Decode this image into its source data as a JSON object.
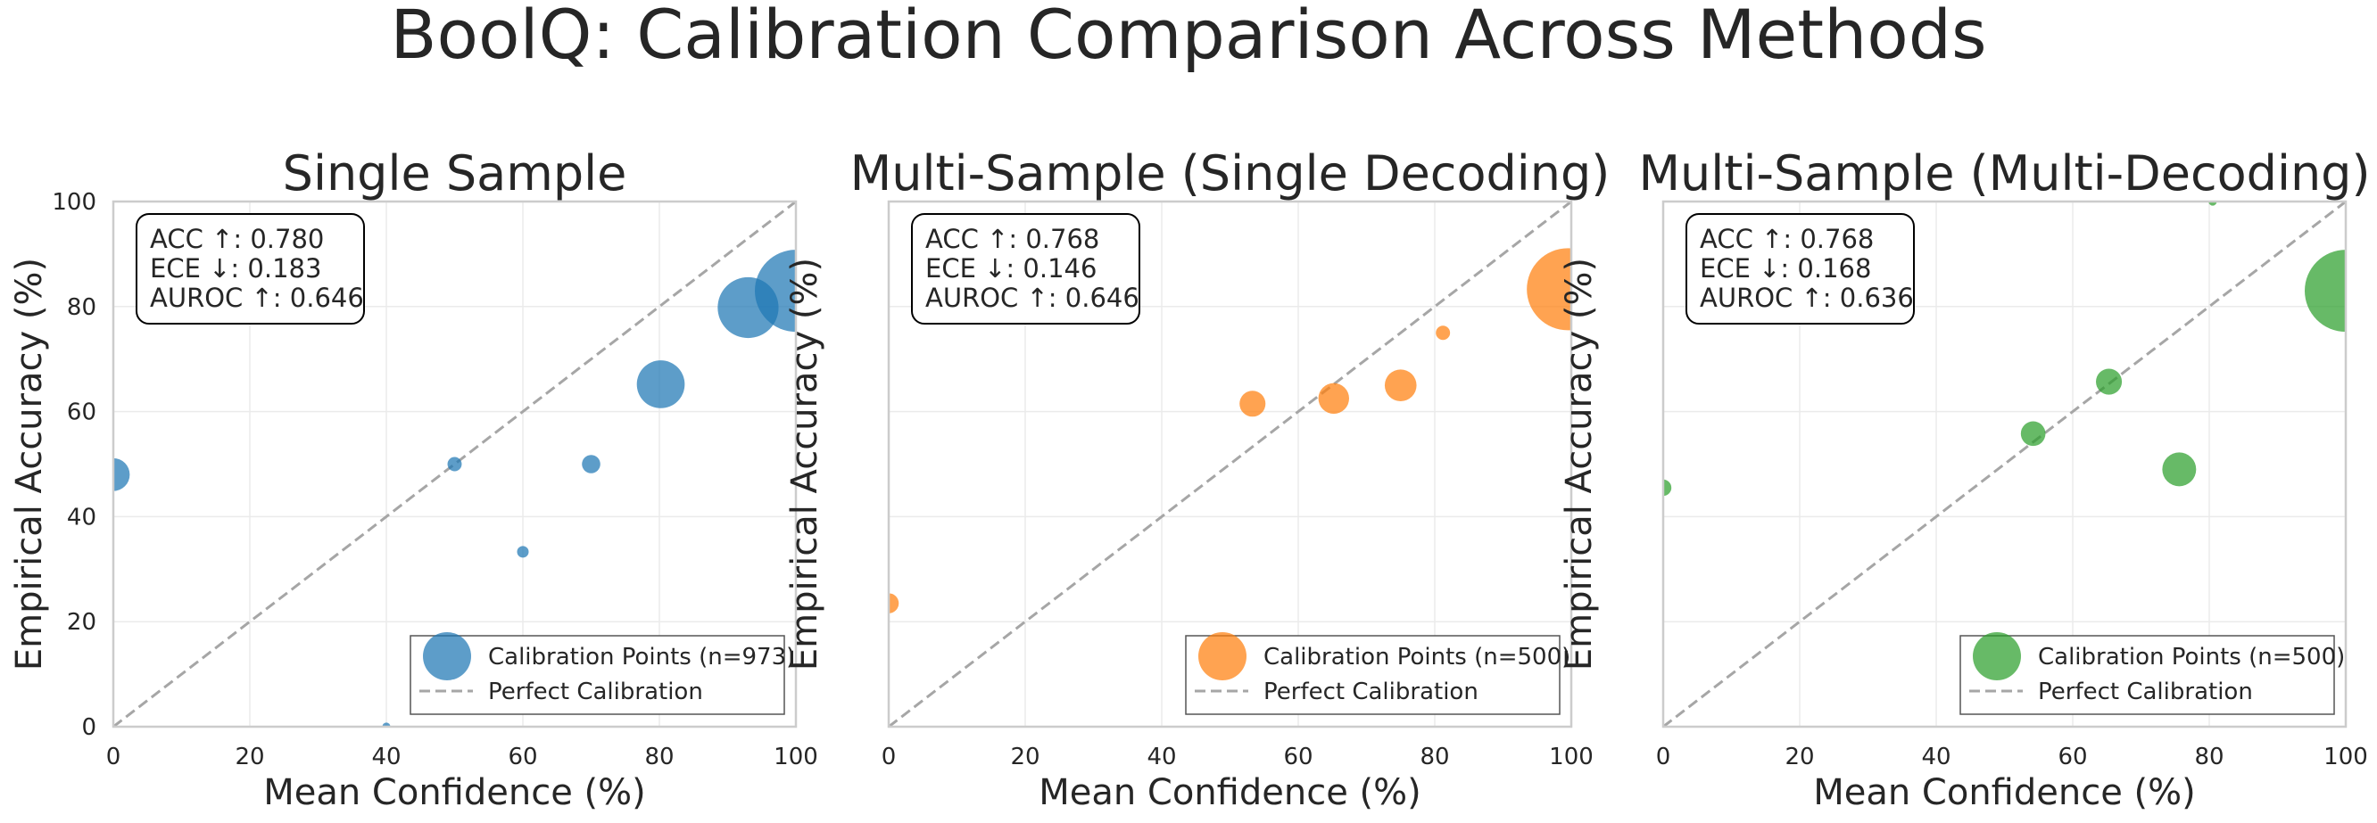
{
  "figure": {
    "title": "BoolQ: Calibration Comparison Across Methods"
  },
  "chart_data": [
    {
      "type": "scatter",
      "title": "Single Sample",
      "xlabel": "Mean Confidence (%)",
      "ylabel": "Empirical Accuracy (%)",
      "xlim": [
        0,
        100
      ],
      "ylim": [
        0,
        100
      ],
      "xticks": [
        "0",
        "20",
        "40",
        "60",
        "80",
        "100"
      ],
      "yticks": [
        "0",
        "20",
        "40",
        "60",
        "80",
        "100"
      ],
      "grid": true,
      "color": "#1f77b4",
      "stats": [
        "ACC ↑: 0.780",
        "ECE ↓: 0.183",
        "AUROC ↑: 0.646"
      ],
      "legend": {
        "placement": "lower-right",
        "entries": [
          "Calibration Points (n=973)",
          "Perfect Calibration"
        ]
      },
      "series": [
        {
          "points": [
            {
              "x": 0,
              "y": 48,
              "size": 16
            },
            {
              "x": 40,
              "y": 0,
              "size": 1
            },
            {
              "x": 50,
              "y": 50,
              "size": 3
            },
            {
              "x": 60,
              "y": 33.3,
              "size": 2
            },
            {
              "x": 70,
              "y": 50,
              "size": 5
            },
            {
              "x": 80.2,
              "y": 65.2,
              "size": 34
            },
            {
              "x": 93,
              "y": 79.8,
              "size": 55
            },
            {
              "x": 100,
              "y": 83,
              "size": 100
            }
          ]
        }
      ]
    },
    {
      "type": "scatter",
      "title": "Multi-Sample (Single Decoding)",
      "xlabel": "Mean Confidence (%)",
      "ylabel": "Empirical Accuracy (%)",
      "xlim": [
        0,
        100
      ],
      "ylim": [
        0,
        100
      ],
      "xticks": [
        "0",
        "20",
        "40",
        "60",
        "80",
        "100"
      ],
      "yticks": [],
      "grid": true,
      "color": "#ff7f0e",
      "stats": [
        "ACC ↑: 0.768",
        "ECE ↓: 0.146",
        "AUROC ↑: 0.646"
      ],
      "legend": {
        "placement": "lower-right",
        "entries": [
          "Calibration Points (n=500)",
          "Perfect Calibration"
        ]
      },
      "series": [
        {
          "points": [
            {
              "x": 0,
              "y": 23.5,
              "size": 6
            },
            {
              "x": 53.3,
              "y": 61.5,
              "size": 10
            },
            {
              "x": 65.2,
              "y": 62.5,
              "size": 14
            },
            {
              "x": 75,
              "y": 65,
              "size": 15
            },
            {
              "x": 81.2,
              "y": 75,
              "size": 3
            },
            {
              "x": 99.5,
              "y": 83.3,
              "size": 100
            }
          ]
        }
      ]
    },
    {
      "type": "scatter",
      "title": "Multi-Sample (Multi-Decoding)",
      "xlabel": "Mean Confidence (%)",
      "ylabel": "Empirical Accuracy (%)",
      "xlim": [
        0,
        100
      ],
      "ylim": [
        0,
        100
      ],
      "xticks": [
        "0",
        "20",
        "40",
        "60",
        "80",
        "100"
      ],
      "yticks": [],
      "grid": true,
      "color": "#2ca02c",
      "stats": [
        "ACC ↑: 0.768",
        "ECE ↓: 0.168",
        "AUROC ↑: 0.636"
      ],
      "legend": {
        "placement": "lower-right",
        "entries": [
          "Calibration Points (n=500)",
          "Perfect Calibration"
        ]
      },
      "series": [
        {
          "points": [
            {
              "x": 0,
              "y": 45.5,
              "size": 4
            },
            {
              "x": 54.2,
              "y": 55.8,
              "size": 9
            },
            {
              "x": 65.3,
              "y": 65.7,
              "size": 10
            },
            {
              "x": 75.6,
              "y": 49,
              "size": 17
            },
            {
              "x": 80.5,
              "y": 100,
              "size": 1
            },
            {
              "x": 100,
              "y": 83,
              "size": 100
            }
          ]
        }
      ]
    }
  ]
}
